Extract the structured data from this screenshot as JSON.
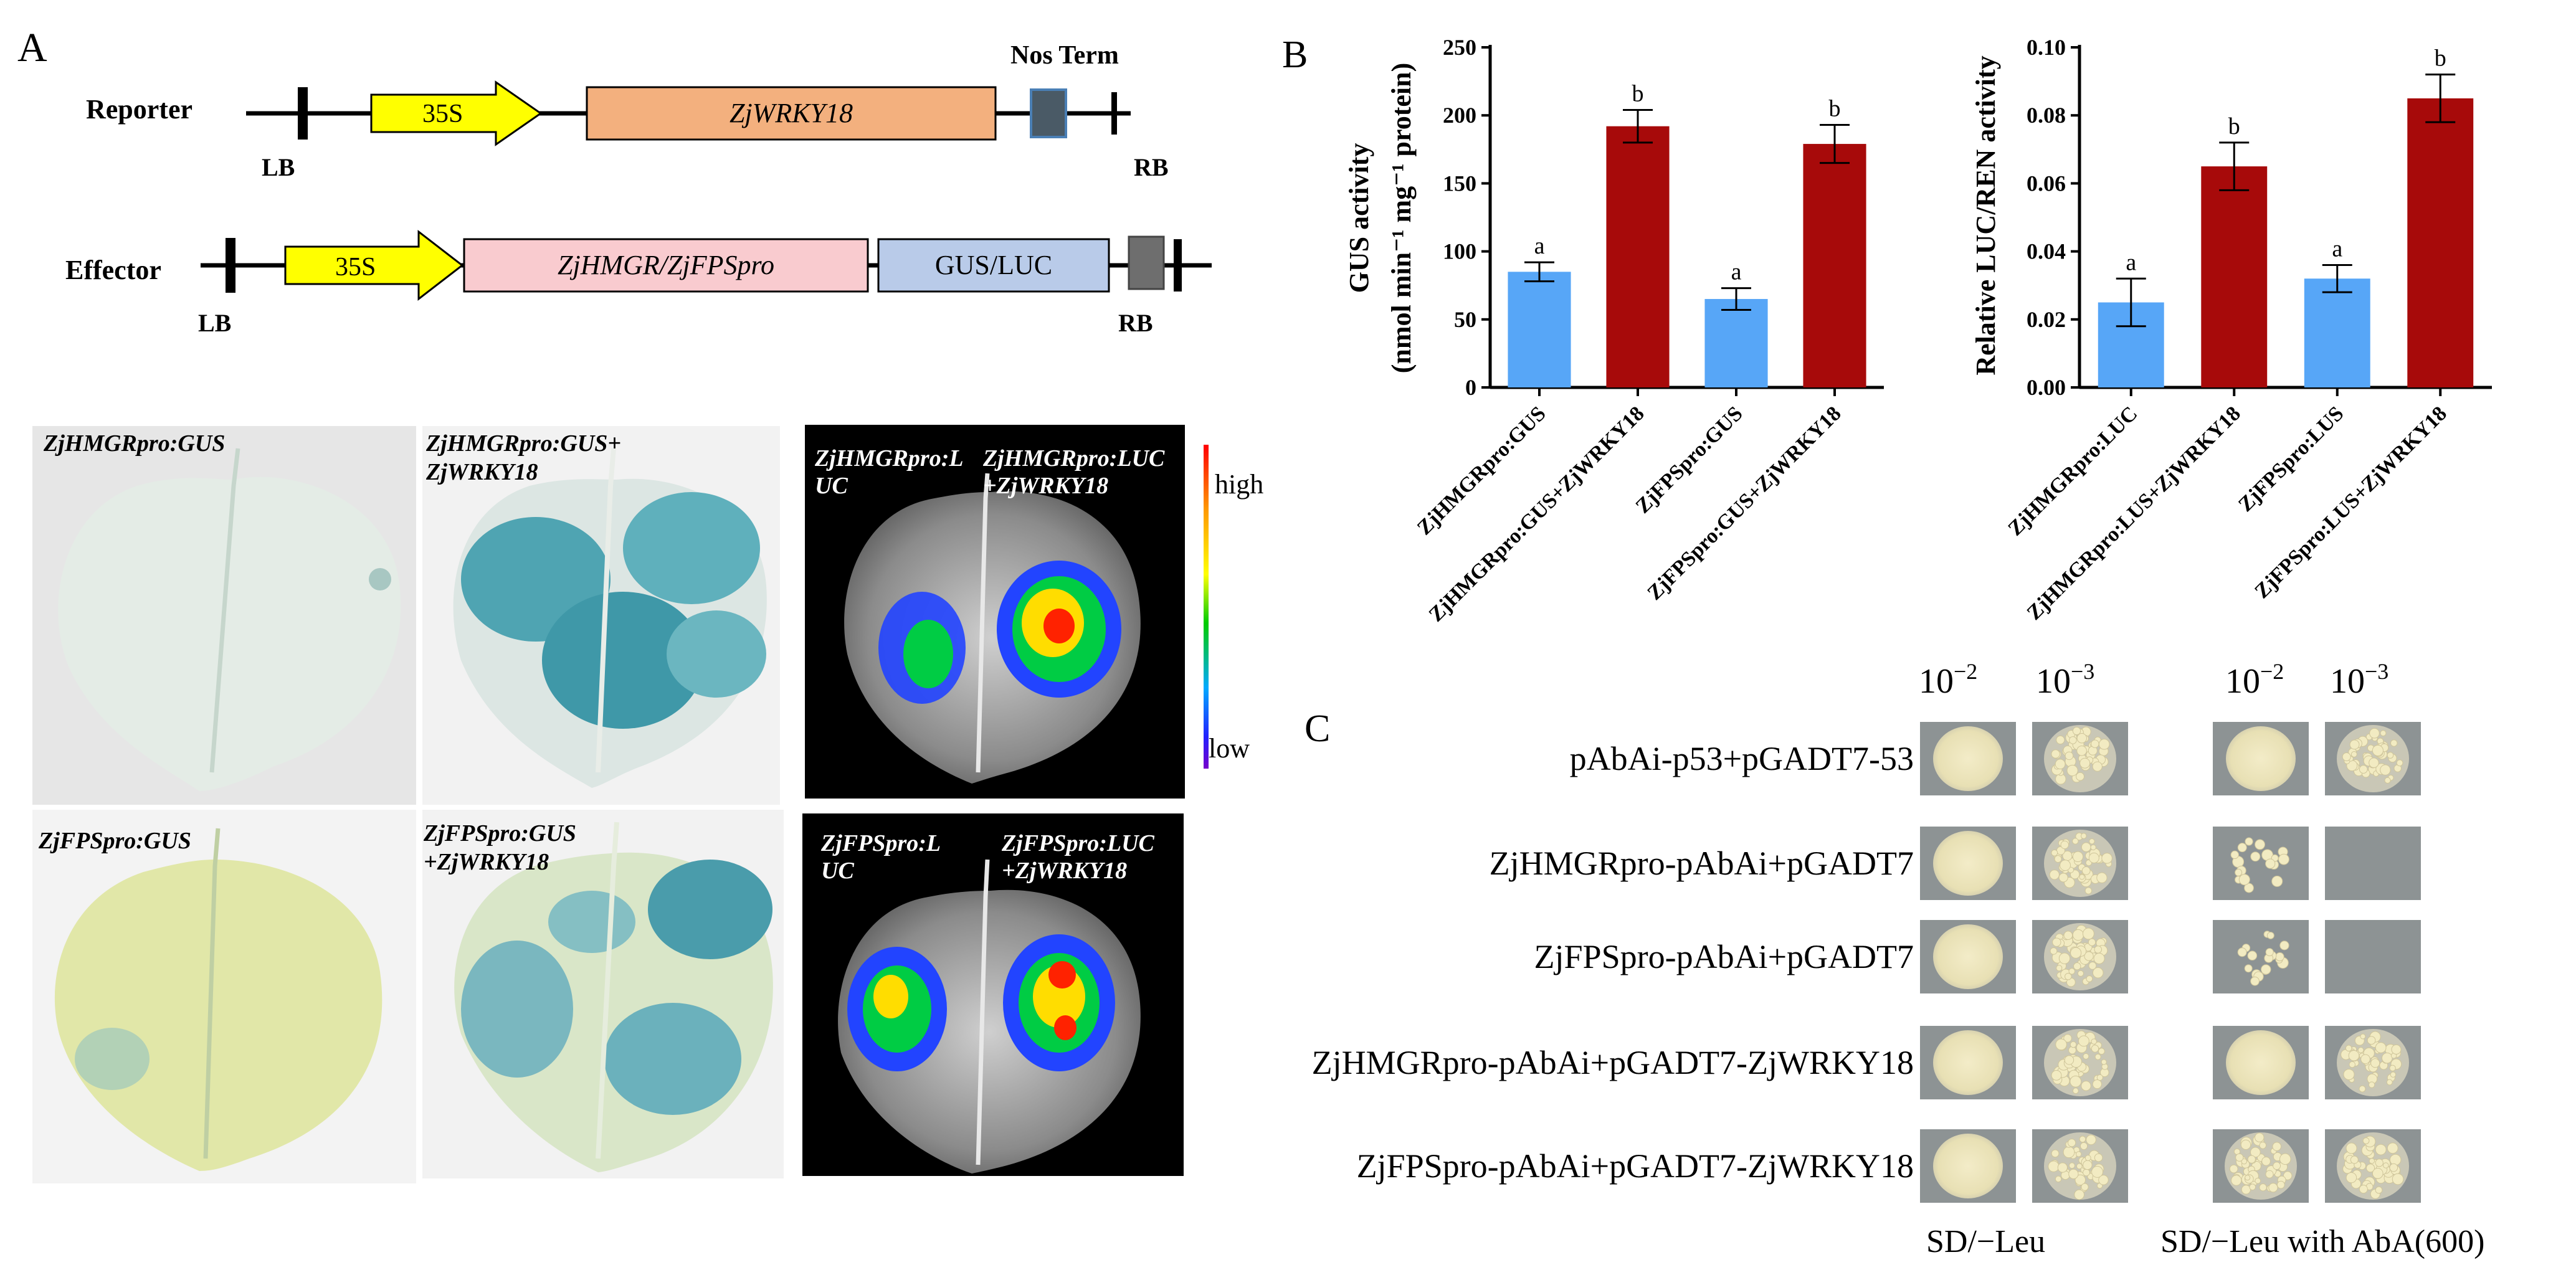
{
  "colors": {
    "control_bar": "#57a6f7",
    "wrky_bar": "#a70a0a",
    "arrow_35s": "#ffff00",
    "wrky_box": "#f3b07e",
    "effector_box": "#f9cbcf",
    "reporter_box": "#b9cbe9",
    "terminator": "#4a5a66"
  },
  "panel_a": {
    "letter": "A",
    "reporter": {
      "row_label": "Reporter",
      "promoter": "35S",
      "gene": "ZjWRKY18",
      "terminator": "Nos Term",
      "left_border": "LB",
      "right_border": "RB"
    },
    "effector": {
      "row_label": "Effector",
      "promoter": "35S",
      "gene": "ZjHMGR/ZjFPSpro",
      "reporter": "GUS/LUC",
      "left_border": "LB",
      "right_border": "RB"
    },
    "leaves": {
      "hmgr_gus": "ZjHMGRpro:GUS",
      "hmgr_gus_wrky_1": "ZjHMGRpro:GUS+",
      "hmgr_gus_wrky_2": "ZjWRKY18",
      "fps_gus": "ZjFPSpro:GUS",
      "fps_gus_wrky_1": "ZjFPSpro:GUS",
      "fps_gus_wrky_2": "+ZjWRKY18"
    },
    "luc_images": {
      "hmgr_left_1": "ZjHMGRpro:L",
      "hmgr_left_2": "UC",
      "hmgr_right_1": "ZjHMGRpro:LUC",
      "hmgr_right_2": "+ZjWRKY18",
      "fps_left_1": "ZjFPSpro:L",
      "fps_left_2": "UC",
      "fps_right_1": "ZjFPSpro:LUC",
      "fps_right_2": "+ZjWRKY18"
    },
    "colorbar": {
      "high": "high",
      "low": "low"
    }
  },
  "panel_b": {
    "letter": "B"
  },
  "chart_data": [
    {
      "type": "bar",
      "categories": [
        "ZjHMGRpro:GUS",
        "ZjHMGRpro:GUS+ZjWRKY18",
        "ZjFPSpro:GUS",
        "ZjFPSpro:GUS+ZjWRKY18"
      ],
      "values": [
        85,
        192,
        65,
        179
      ],
      "errors": [
        7,
        12,
        8,
        14
      ],
      "significance": [
        "a",
        "b",
        "a",
        "b"
      ],
      "ylabel_line1": "GUS activity",
      "ylabel_line2": "(nmol min⁻¹ mg⁻¹ protein)",
      "ylim": [
        0,
        250
      ],
      "yticks": [
        "0",
        "50",
        "100",
        "150",
        "200",
        "250"
      ],
      "grid": false,
      "legend": "none"
    },
    {
      "type": "bar",
      "categories": [
        "ZjHMGRpro:LUC",
        "ZjHMGRpro:LUS+ZjWRKY18",
        "ZjFPSpro:LUS",
        "ZjFPSpro:LUS+ZjWRKY18"
      ],
      "values": [
        0.025,
        0.065,
        0.032,
        0.085
      ],
      "errors": [
        0.007,
        0.007,
        0.004,
        0.007
      ],
      "significance": [
        "a",
        "b",
        "a",
        "b"
      ],
      "ylabel": "Relative LUC/REN activity",
      "ylim": [
        0,
        0.1
      ],
      "yticks": [
        "0.00",
        "0.02",
        "0.04",
        "0.06",
        "0.08",
        "0.10"
      ],
      "grid": false,
      "legend": "none"
    }
  ],
  "panel_c": {
    "letter": "C",
    "dilution_1": "10",
    "dilution_1_exp": "−2",
    "dilution_2": "10",
    "dilution_2_exp": "−3",
    "rows": [
      "pAbAi-p53+pGADT7-53",
      "ZjHMGRpro-pAbAi+pGADT7",
      "ZjFPSpro-pAbAi+pGADT7",
      "ZjHMGRpro-pAbAi+pGADT7-ZjWRKY18",
      "ZjFPSpro-pAbAi+pGADT7-ZjWRKY18"
    ],
    "growth_sd": [
      "lawn",
      "colonies"
    ],
    "growth_aba": [
      [
        "lawn",
        "colonies"
      ],
      [
        "few",
        "none"
      ],
      [
        "few",
        "none"
      ],
      [
        "lawn",
        "colonies"
      ],
      [
        "colonies",
        "colonies"
      ]
    ],
    "media_1": "SD/−Leu",
    "media_2": "SD/−Leu with AbA(600)"
  }
}
